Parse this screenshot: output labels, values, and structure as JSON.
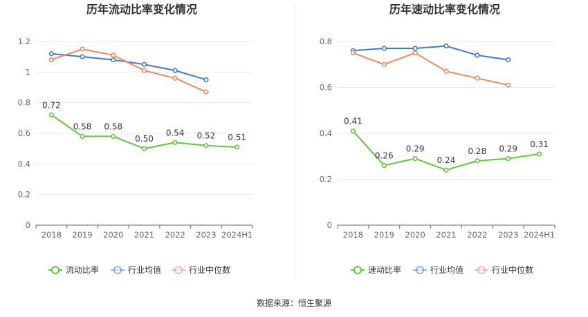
{
  "source": "数据来源：恒生聚源",
  "chart_data": [
    {
      "type": "line",
      "title": "历年流动比率变化情况",
      "categories": [
        "2018",
        "2019",
        "2020",
        "2021",
        "2022",
        "2023",
        "2024H1"
      ],
      "ylim": [
        0,
        1.2
      ],
      "yticks": [
        "0",
        "0.2",
        "0.4",
        "0.6",
        "0.8",
        "1",
        "1.2"
      ],
      "ytick_values": [
        0,
        0.2,
        0.4,
        0.6,
        0.8,
        1.0,
        1.2
      ],
      "grid": true,
      "legend_position": "bottom",
      "series": [
        {
          "name": "流动比率",
          "color": "#5fc73a",
          "values": [
            0.72,
            0.58,
            0.58,
            0.5,
            0.54,
            0.52,
            0.51
          ],
          "labels": [
            "0.72",
            "0.58",
            "0.58",
            "0.50",
            "0.54",
            "0.52",
            "0.51"
          ]
        },
        {
          "name": "行业均值",
          "color": "#3c78d8",
          "values": [
            1.12,
            1.1,
            1.08,
            1.05,
            1.01,
            0.95,
            null
          ]
        },
        {
          "name": "行业中位数",
          "color": "#f08a5d",
          "values": [
            1.08,
            1.15,
            1.11,
            1.01,
            0.96,
            0.87,
            null
          ]
        }
      ]
    },
    {
      "type": "line",
      "title": "历年速动比率变化情况",
      "categories": [
        "2018",
        "2019",
        "2020",
        "2021",
        "2022",
        "2023",
        "2024H1"
      ],
      "ylim": [
        0,
        0.8
      ],
      "yticks": [
        "0",
        "0.2",
        "0.4",
        "0.6",
        "0.8"
      ],
      "ytick_values": [
        0,
        0.2,
        0.4,
        0.6,
        0.8
      ],
      "grid": true,
      "legend_position": "bottom",
      "series": [
        {
          "name": "速动比率",
          "color": "#5fc73a",
          "values": [
            0.41,
            0.26,
            0.29,
            0.24,
            0.28,
            0.29,
            0.31
          ],
          "labels": [
            "0.41",
            "0.26",
            "0.29",
            "0.24",
            "0.28",
            "0.29",
            "0.31"
          ]
        },
        {
          "name": "行业均值",
          "color": "#3c78d8",
          "values": [
            0.76,
            0.77,
            0.77,
            0.78,
            0.74,
            0.72,
            null
          ]
        },
        {
          "name": "行业中位数",
          "color": "#f08a5d",
          "values": [
            0.75,
            0.7,
            0.75,
            0.67,
            0.64,
            0.61,
            null
          ]
        }
      ]
    }
  ]
}
